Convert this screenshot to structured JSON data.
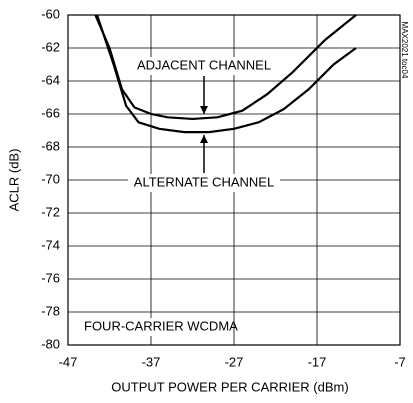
{
  "chart_data": {
    "type": "line",
    "xlabel": "OUTPUT POWER PER CARRIER (dBm)",
    "ylabel": "ACLR (dB)",
    "annotations": [
      "FOUR-CARRIER WCDMA",
      "MAX2021 toc04"
    ],
    "series": [
      {
        "name": "ADJACENT CHANNEL",
        "color": "#000000",
        "x": [
          -43.7,
          -42,
          -40.5,
          -39,
          -37,
          -35,
          -32,
          -29,
          -26,
          -23,
          -20,
          -16,
          -12.3
        ],
        "values": [
          -60,
          -62,
          -64.5,
          -65.6,
          -66,
          -66.2,
          -66.3,
          -66.2,
          -65.8,
          -64.8,
          -63.5,
          -61.5,
          -60
        ]
      },
      {
        "name": "ALTERNATE CHANNEL",
        "color": "#000000",
        "x": [
          -43.5,
          -41.5,
          -40,
          -38.5,
          -36,
          -33,
          -30,
          -27,
          -24,
          -21,
          -18,
          -15,
          -12.3
        ],
        "values": [
          -60,
          -63,
          -65.5,
          -66.5,
          -66.9,
          -67.1,
          -67.1,
          -66.9,
          -66.5,
          -65.7,
          -64.5,
          -63,
          -62
        ]
      }
    ],
    "xlim": [
      -47,
      -7
    ],
    "xticks": [
      -47,
      -37,
      -27,
      -17,
      -7
    ],
    "ylim": [
      -80,
      -60
    ],
    "yticks": [
      -80,
      -78,
      -76,
      -74,
      -72,
      -70,
      -68,
      -66,
      -64,
      -62,
      -60
    ],
    "grid": true
  }
}
